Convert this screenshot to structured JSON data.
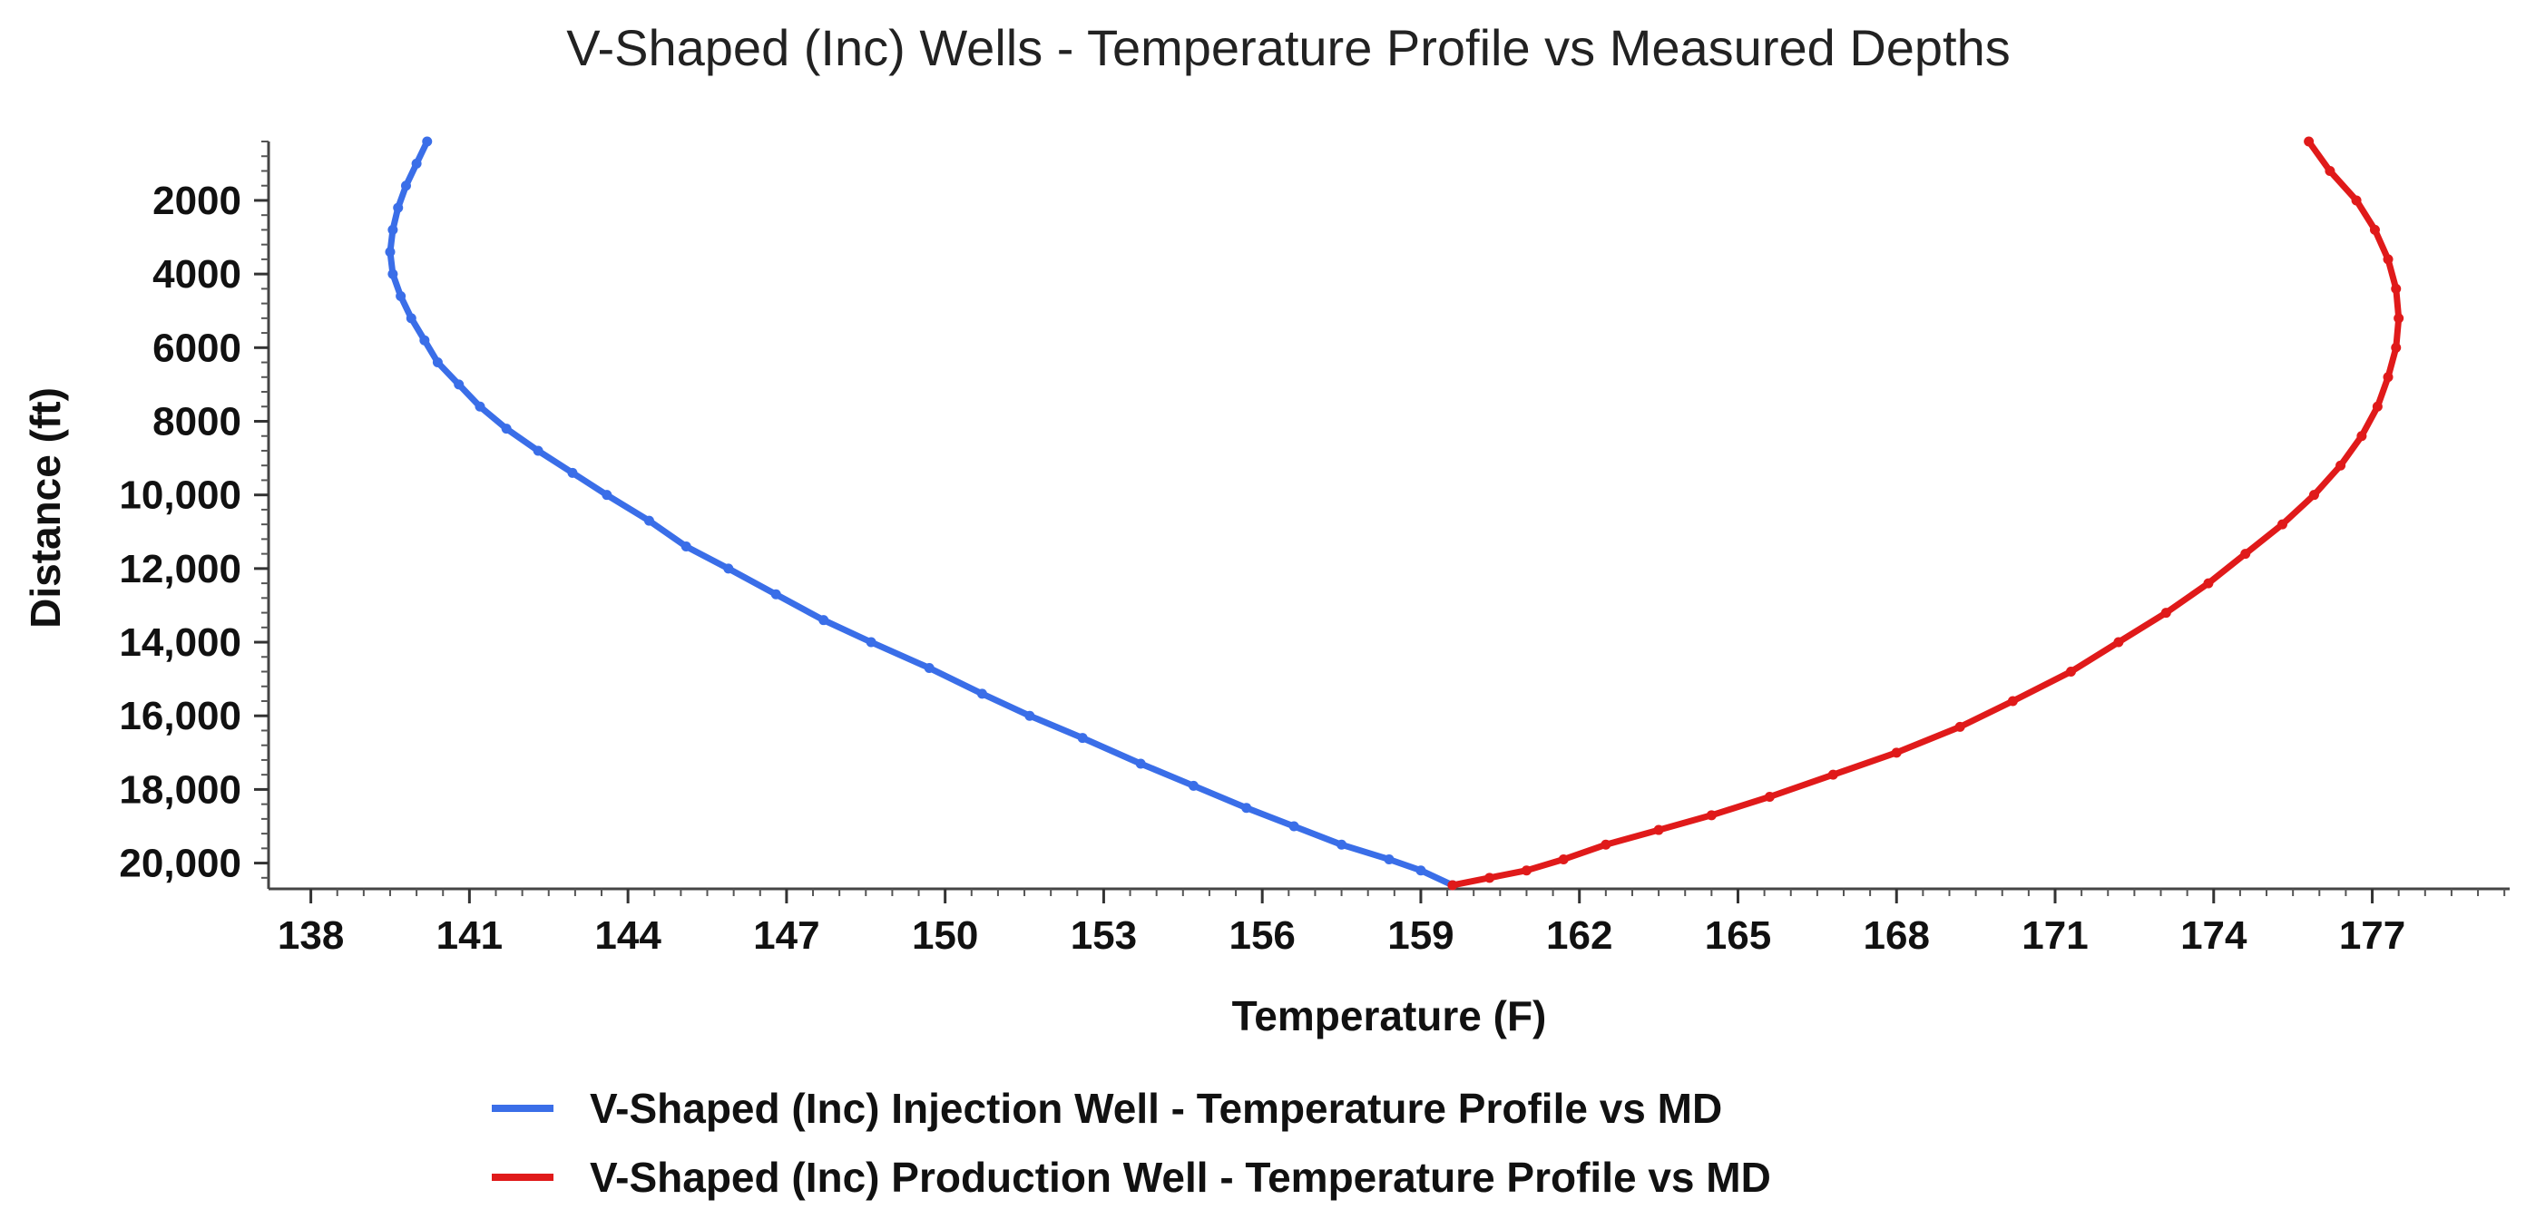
{
  "chart_data": {
    "type": "line",
    "title": "V-Shaped (Inc) Wells - Temperature Profile vs Measured Depths",
    "xlabel": "Temperature (F)",
    "ylabel": "Distance (ft)",
    "xlim": [
      137.2,
      179.6
    ],
    "ylim": [
      20700,
      400
    ],
    "y_inverted": true,
    "grid": false,
    "legend_position": "bottom",
    "x_ticks": [
      {
        "value": 138,
        "label": "138"
      },
      {
        "value": 141,
        "label": "141"
      },
      {
        "value": 144,
        "label": "144"
      },
      {
        "value": 147,
        "label": "147"
      },
      {
        "value": 150,
        "label": "150"
      },
      {
        "value": 153,
        "label": "153"
      },
      {
        "value": 156,
        "label": "156"
      },
      {
        "value": 159,
        "label": "159"
      },
      {
        "value": 162,
        "label": "162"
      },
      {
        "value": 165,
        "label": "165"
      },
      {
        "value": 168,
        "label": "168"
      },
      {
        "value": 171,
        "label": "171"
      },
      {
        "value": 174,
        "label": "174"
      },
      {
        "value": 177,
        "label": "177"
      }
    ],
    "y_ticks": [
      {
        "value": 2000,
        "label": "2000"
      },
      {
        "value": 4000,
        "label": "4000"
      },
      {
        "value": 6000,
        "label": "6000"
      },
      {
        "value": 8000,
        "label": "8000"
      },
      {
        "value": 10000,
        "label": "10,000"
      },
      {
        "value": 12000,
        "label": "12,000"
      },
      {
        "value": 14000,
        "label": "14,000"
      },
      {
        "value": 16000,
        "label": "16,000"
      },
      {
        "value": 18000,
        "label": "18,000"
      },
      {
        "value": 20000,
        "label": "20,000"
      }
    ],
    "series": [
      {
        "name": "V-Shaped (Inc) Injection Well - Temperature Profile vs MD",
        "color": "#3a6ee8",
        "points": [
          [
            140.2,
            400
          ],
          [
            140.0,
            1000
          ],
          [
            139.8,
            1600
          ],
          [
            139.65,
            2200
          ],
          [
            139.55,
            2800
          ],
          [
            139.5,
            3400
          ],
          [
            139.55,
            4000
          ],
          [
            139.7,
            4600
          ],
          [
            139.9,
            5200
          ],
          [
            140.15,
            5800
          ],
          [
            140.4,
            6400
          ],
          [
            140.8,
            7000
          ],
          [
            141.2,
            7600
          ],
          [
            141.7,
            8200
          ],
          [
            142.3,
            8800
          ],
          [
            142.95,
            9400
          ],
          [
            143.6,
            10000
          ],
          [
            144.4,
            10700
          ],
          [
            145.1,
            11400
          ],
          [
            145.9,
            12000
          ],
          [
            146.8,
            12700
          ],
          [
            147.7,
            13400
          ],
          [
            148.6,
            14000
          ],
          [
            149.7,
            14700
          ],
          [
            150.7,
            15400
          ],
          [
            151.6,
            16000
          ],
          [
            152.6,
            16600
          ],
          [
            153.7,
            17300
          ],
          [
            154.7,
            17900
          ],
          [
            155.7,
            18500
          ],
          [
            156.6,
            19000
          ],
          [
            157.5,
            19500
          ],
          [
            158.4,
            19900
          ],
          [
            159.0,
            20200
          ],
          [
            159.6,
            20600
          ]
        ]
      },
      {
        "name": "V-Shaped (Inc) Production Well - Temperature Profile vs MD",
        "color": "#e01a1a",
        "points": [
          [
            159.6,
            20600
          ],
          [
            160.3,
            20400
          ],
          [
            161.0,
            20200
          ],
          [
            161.7,
            19900
          ],
          [
            162.5,
            19500
          ],
          [
            163.5,
            19100
          ],
          [
            164.5,
            18700
          ],
          [
            165.6,
            18200
          ],
          [
            166.8,
            17600
          ],
          [
            168.0,
            17000
          ],
          [
            169.2,
            16300
          ],
          [
            170.2,
            15600
          ],
          [
            171.3,
            14800
          ],
          [
            172.2,
            14000
          ],
          [
            173.1,
            13200
          ],
          [
            173.9,
            12400
          ],
          [
            174.6,
            11600
          ],
          [
            175.3,
            10800
          ],
          [
            175.9,
            10000
          ],
          [
            176.4,
            9200
          ],
          [
            176.8,
            8400
          ],
          [
            177.1,
            7600
          ],
          [
            177.3,
            6800
          ],
          [
            177.45,
            6000
          ],
          [
            177.5,
            5200
          ],
          [
            177.45,
            4400
          ],
          [
            177.3,
            3600
          ],
          [
            177.05,
            2800
          ],
          [
            176.7,
            2000
          ],
          [
            176.2,
            1200
          ],
          [
            175.8,
            400
          ]
        ]
      }
    ]
  }
}
